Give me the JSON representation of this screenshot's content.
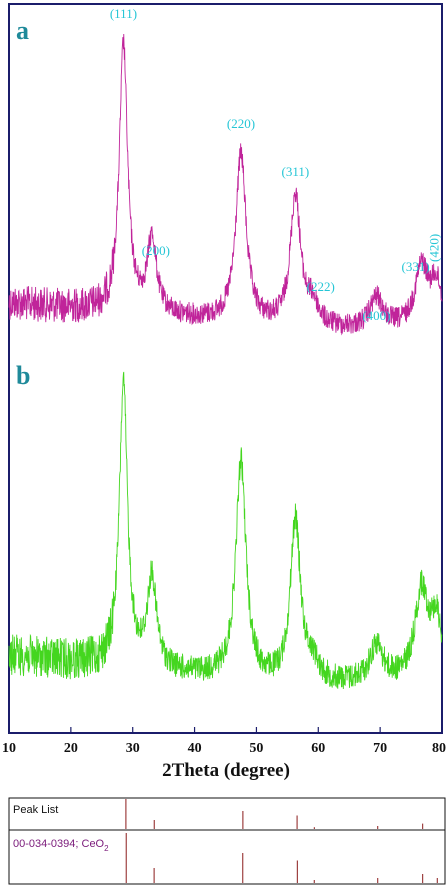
{
  "chart_data": {
    "type": "line",
    "xlabel": "2Theta (degree)",
    "xlim": [
      10,
      80
    ],
    "xticks": [
      10,
      20,
      30,
      40,
      50,
      60,
      70,
      80
    ],
    "grid": false,
    "colors": {
      "a": "#c0249a",
      "b": "#44d61f",
      "hkl": "#25c6d6",
      "panel_letter": "#1f8a9a"
    },
    "panels": [
      {
        "label": "a",
        "peaks": [
          {
            "hkl": "(111)",
            "two_theta": 28.5
          },
          {
            "hkl": "(200)",
            "two_theta": 33.1
          },
          {
            "hkl": "(220)",
            "two_theta": 47.5
          },
          {
            "hkl": "(311)",
            "two_theta": 56.3
          },
          {
            "hkl": "(222)",
            "two_theta": 59.1
          },
          {
            "hkl": "(400)",
            "two_theta": 69.4
          },
          {
            "hkl": "(331)",
            "two_theta": 76.7
          },
          {
            "hkl": "(420)",
            "two_theta": 79.1
          }
        ]
      },
      {
        "label": "b",
        "peaks": [
          {
            "two_theta": 28.5
          },
          {
            "two_theta": 33.1
          },
          {
            "two_theta": 47.5
          },
          {
            "two_theta": 56.3
          },
          {
            "two_theta": 69.4
          },
          {
            "two_theta": 76.7
          }
        ]
      }
    ],
    "reference": {
      "rows": [
        {
          "label": "Peak List",
          "lines": [
            28.5,
            33.1,
            47.5,
            56.3,
            59.1,
            69.4,
            76.7
          ]
        },
        {
          "label": "00-034-0394; CeO",
          "subscript": "2",
          "lines": [
            28.55,
            33.08,
            47.48,
            56.34,
            59.09,
            69.4,
            76.7,
            79.07
          ]
        }
      ]
    }
  }
}
